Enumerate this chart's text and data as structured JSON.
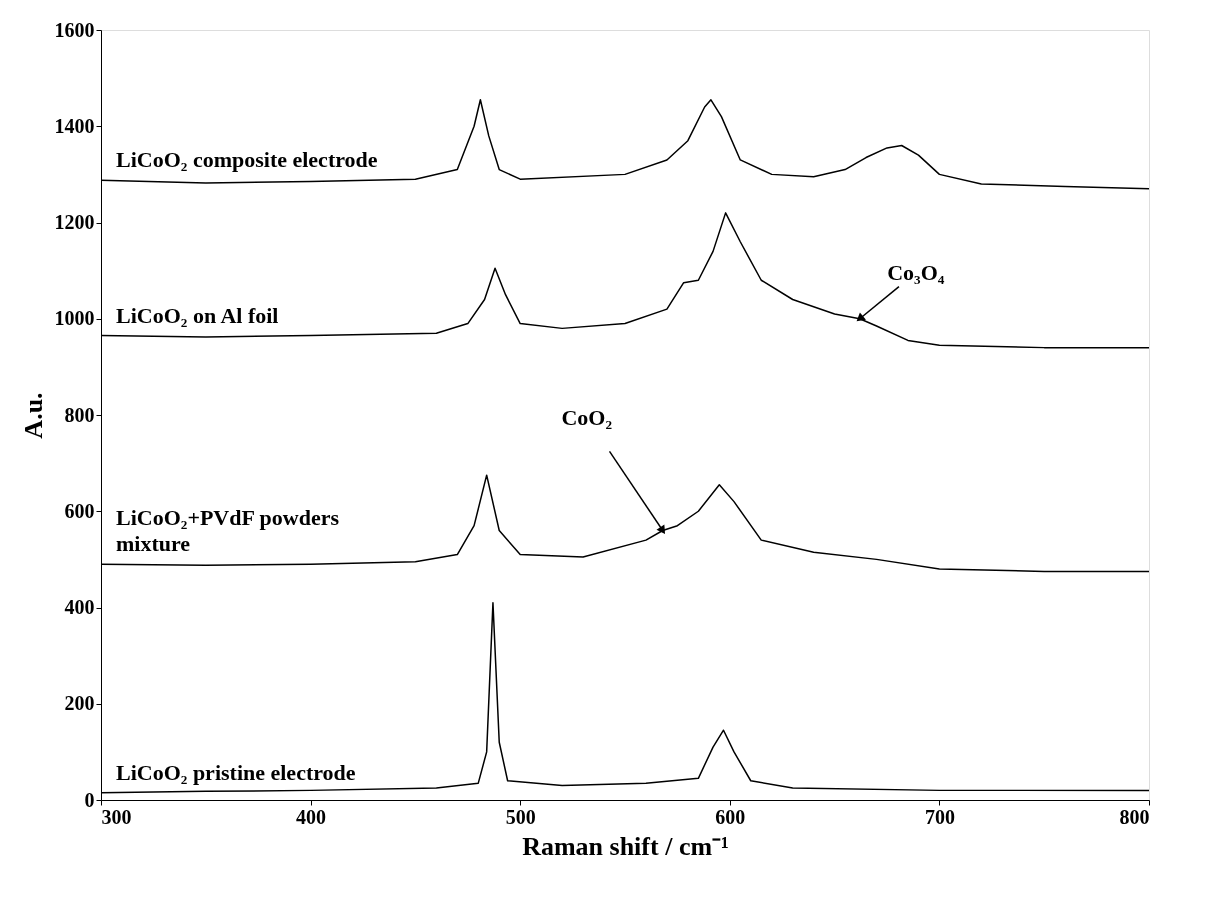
{
  "chart_data": {
    "type": "line",
    "xlabel": "Raman shift / cm⁻¹",
    "ylabel": "A.u.",
    "xlim": [
      300,
      800
    ],
    "xticks": [
      300,
      400,
      500,
      600,
      700,
      800
    ],
    "ylim": [
      0,
      1600
    ],
    "yticks": [
      0,
      200,
      400,
      600,
      800,
      1000,
      1200,
      1400,
      1600
    ],
    "grid": false,
    "marker": "none",
    "line_style": "solid",
    "series": [
      {
        "name": "LiCoO₂ composite electrode",
        "color": "#000000",
        "x": [
          300,
          350,
          400,
          450,
          470,
          478,
          481,
          485,
          490,
          500,
          550,
          570,
          580,
          588,
          591,
          596,
          605,
          620,
          640,
          655,
          665,
          675,
          682,
          690,
          700,
          720,
          760,
          800
        ],
        "values": [
          1288,
          1282,
          1285,
          1290,
          1310,
          1400,
          1455,
          1380,
          1310,
          1290,
          1300,
          1330,
          1370,
          1440,
          1455,
          1420,
          1330,
          1300,
          1295,
          1310,
          1335,
          1355,
          1360,
          1340,
          1300,
          1280,
          1275,
          1270
        ]
      },
      {
        "name": "LiCoO₂ on Al foil",
        "color": "#000000",
        "x": [
          300,
          350,
          400,
          460,
          475,
          483,
          488,
          493,
          500,
          520,
          550,
          570,
          578,
          585,
          592,
          598,
          605,
          615,
          630,
          650,
          662,
          670,
          685,
          700,
          750,
          800
        ],
        "values": [
          965,
          962,
          965,
          970,
          990,
          1040,
          1105,
          1050,
          990,
          980,
          990,
          1020,
          1075,
          1080,
          1140,
          1220,
          1160,
          1080,
          1040,
          1010,
          1000,
          985,
          955,
          945,
          940,
          940
        ]
      },
      {
        "name": "LiCoO₂+PVdF powders mixture",
        "color": "#000000",
        "x": [
          300,
          350,
          400,
          450,
          470,
          478,
          484,
          490,
          500,
          530,
          560,
          568,
          575,
          585,
          595,
          602,
          615,
          640,
          670,
          700,
          750,
          800
        ],
        "values": [
          490,
          488,
          490,
          495,
          510,
          570,
          675,
          560,
          510,
          505,
          540,
          560,
          570,
          600,
          655,
          620,
          540,
          515,
          500,
          480,
          475,
          475
        ]
      },
      {
        "name": "LiCoO₂ pristine electrode",
        "color": "#000000",
        "x": [
          300,
          350,
          400,
          460,
          480,
          484,
          487,
          490,
          494,
          520,
          560,
          585,
          592,
          597,
          602,
          610,
          630,
          700,
          800
        ],
        "values": [
          15,
          18,
          20,
          25,
          35,
          100,
          410,
          120,
          40,
          30,
          35,
          45,
          110,
          145,
          100,
          40,
          25,
          20,
          20
        ]
      }
    ],
    "annotations": [
      {
        "text": "CoO₂",
        "x": 568,
        "y": 560
      },
      {
        "text": "Co₃O₄",
        "x": 662,
        "y": 1000
      }
    ]
  }
}
